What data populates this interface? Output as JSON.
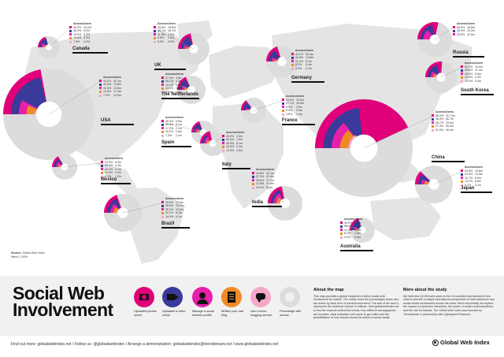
{
  "colors": {
    "photos": "#e0007a",
    "video": "#3a3a9a",
    "network": "#e71faa",
    "blog": "#f08a24",
    "micro": "#f4a7c8",
    "access": "#dcdcdc",
    "map": "#e6e6e6"
  },
  "header_labels": {
    "access": "Access",
    "users": "Users"
  },
  "countries": [
    {
      "key": "canada",
      "name": "Canada",
      "rows": [
        [
          "40.2%",
          "10.0%"
        ],
        [
          "40.9%",
          "9.0%"
        ],
        [
          "19.9%",
          "3.3%"
        ],
        [
          "13.8%",
          "2.0%"
        ],
        [
          "7.6%",
          "1.0%"
        ]
      ]
    },
    {
      "key": "uk",
      "name": "UK",
      "rows": [
        [
          "43.6%",
          "15.8%"
        ],
        [
          "38.2%",
          "15.1%"
        ],
        [
          "11.5%",
          "2.4%"
        ],
        [
          "8.6%",
          "1.5%"
        ],
        [
          "5.5%",
          "0.9%"
        ]
      ]
    },
    {
      "key": "usa",
      "name": "USA",
      "rows": [
        [
          "44.2%",
          "92.1m"
        ],
        [
          "42.6%",
          "79.8m"
        ],
        [
          "15.3%",
          "23.5m"
        ],
        [
          "12.6%",
          "17.3m"
        ],
        [
          "7.0%",
          "13.3m"
        ]
      ]
    },
    {
      "key": "netherlands",
      "name": "The Netherlands",
      "rows": [
        [
          "37.0%",
          "4.9m"
        ],
        [
          "33.7%",
          "4.3m"
        ],
        [
          "15.1%",
          "1.9m"
        ],
        [
          "13.3%",
          "1.8m"
        ],
        [
          "7.5%",
          "1.0m"
        ]
      ]
    },
    {
      "key": "germany",
      "name": "Germany",
      "rows": [
        [
          "40.2%",
          "30.4m"
        ],
        [
          "31.8%",
          "13.8m"
        ],
        [
          "12.4%",
          "9.7m"
        ],
        [
          "8.3%",
          "5.4m"
        ],
        [
          "3.3%",
          "2.1m"
        ]
      ]
    },
    {
      "key": "spain",
      "name": "Spain",
      "rows": [
        [
          "39.4%",
          "5.6m"
        ],
        [
          "35.8%",
          "5.1m"
        ],
        [
          "17.2%",
          "2.1m"
        ],
        [
          "18.2%",
          "2.6m"
        ],
        [
          "7.3%",
          "1.4m"
        ]
      ]
    },
    {
      "key": "france",
      "name": "France",
      "rows": [
        [
          "29.3%",
          "15.2m"
        ],
        [
          "27.1%",
          "15.5m"
        ],
        [
          "8.5%",
          "3.9m"
        ],
        [
          "6.9%",
          "4.0m"
        ],
        [
          "3.6%",
          "1.4m"
        ]
      ]
    },
    {
      "key": "italy",
      "name": "Italy",
      "rows": [
        [
          "43.0%",
          "3.0m"
        ],
        [
          "30.0%",
          "7.0m"
        ],
        [
          "28.9%",
          "6.1m"
        ],
        [
          "19.4%",
          "4.1m"
        ],
        [
          "13.3%",
          "2.6m"
        ]
      ]
    },
    {
      "key": "russia",
      "name": "Russia",
      "rows": [
        [
          "56.9%",
          "18.8m"
        ],
        [
          "45.0%",
          "15.2m"
        ],
        [
          "29.8%",
          "12.6m"
        ],
        [
          "",
          ""
        ],
        [
          "",
          ""
        ]
      ]
    },
    {
      "key": "southkorea",
      "name": "South Korea",
      "rows": [
        [
          "52.1%",
          "14.9m"
        ],
        [
          "39.6%",
          "11.3m"
        ],
        [
          "18.5%",
          "5.3m"
        ],
        [
          "14.9%",
          "4.3m"
        ],
        [
          "15.0%",
          "4.3m"
        ]
      ]
    },
    {
      "key": "china",
      "name": "China",
      "rows": [
        [
          "86.0%",
          "117.3m"
        ],
        [
          "46.0%",
          "60.7m"
        ],
        [
          "28.7%",
          "75.9m"
        ],
        [
          "27.3%",
          "55.2m"
        ],
        [
          "31.6%",
          "46.4m"
        ]
      ]
    },
    {
      "key": "japan",
      "name": "Japan",
      "rows": [
        [
          "24.5%",
          "15.8m"
        ],
        [
          "22.5%",
          "14.5m"
        ],
        [
          "12.7%",
          "6.9m"
        ],
        [
          "13.2%",
          "8.6m"
        ],
        [
          "5.7%",
          "3.1m"
        ]
      ]
    },
    {
      "key": "india",
      "name": "India",
      "rows": [
        [
          "43.8%",
          "22.1m"
        ],
        [
          "37.5%",
          "20.4m"
        ],
        [
          "34.0%",
          "17.1m"
        ],
        [
          "24.0%",
          "11.8m"
        ],
        [
          "24.0%",
          "8.4m"
        ]
      ]
    },
    {
      "key": "mexico",
      "name": "Mexico",
      "rows": [
        [
          "32.9%",
          "8.4m"
        ],
        [
          "30.0%",
          "4.4m"
        ],
        [
          "22.0%",
          "3.1m"
        ],
        [
          "12.6%",
          "2.0m"
        ],
        [
          "8.0%",
          "1.2m"
        ]
      ]
    },
    {
      "key": "brazil",
      "name": "Brazil",
      "rows": [
        [
          "39.6%",
          "17.9m"
        ],
        [
          "36.0%",
          "15.1m"
        ],
        [
          "26.0%",
          "13.2m"
        ],
        [
          "20.7%",
          "8.2m"
        ],
        [
          "14.0%",
          "6.1m"
        ]
      ]
    },
    {
      "key": "australia",
      "name": "Australia",
      "rows": [
        [
          "40.0%",
          "3.0m"
        ],
        [
          "39.1%",
          "2.6m"
        ],
        [
          "11.9%",
          "1.2m"
        ],
        [
          "8.2%",
          "1.0m"
        ],
        [
          "4.0%",
          "0.4m"
        ]
      ]
    }
  ],
  "source": {
    "label": "Source:",
    "text": "Global Web Index",
    "wave": "Wave 1 2009"
  },
  "title": {
    "line1": "Social Web",
    "line2": "Involvement"
  },
  "activities": [
    {
      "label": "Uploaded photos online",
      "icon": "camera-icon"
    },
    {
      "label": "Uploaded a video online",
      "icon": "video-icon"
    },
    {
      "label": "Manage a social network profile",
      "icon": "network-icon"
    },
    {
      "label": "Written your own blog",
      "icon": "blog-icon"
    },
    {
      "label": "Use a micro-blogging service",
      "icon": "microblog-icon"
    },
    {
      "label": "Percentage with access",
      "icon": "access-icon"
    }
  ],
  "about_map": {
    "heading": "About the map",
    "text": "This map provides a global snapshot of active social web involvement by market. The charts show the percentages those who are active by each form of social involvement. The size of the arch's, represents the audience volume in millions. Visit globalwebindex.net to find the reasons behind the trends, how different demographics are involved, what motivates web users to get online and the quantification of how brands should be active in social media."
  },
  "about_study": {
    "heading": "More about the study",
    "text": "We interview 32,000 web users in the 16 countries represented in this chart to provide a unique international perspective on web behaviour and social media involvement across the world. More importantly we explore the impact on consumer behaviour, the power of social communications and the role for brands. The Global Web Index was founded by Trendstream in partnership with Lightspeed Research."
  },
  "footer": {
    "find": "Find out more: globalwebindex.net",
    "follow": "Follow us: @globalwebindex",
    "arrange": "Arrange a demonstration: globalwebindex@trendstream.net",
    "site": "www.globalwebindex.net"
  },
  "logo": "Global Web Index"
}
